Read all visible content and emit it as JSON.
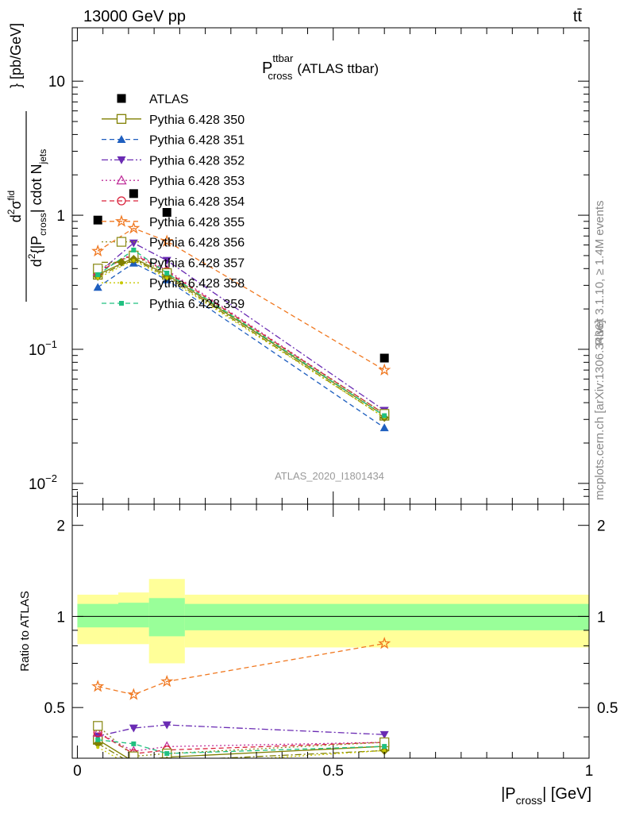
{
  "header": {
    "energy_label": "13000 GeV pp",
    "process_label": "tt̄"
  },
  "side_labels": {
    "rivet": "Rivet 3.1.10, ≥ 1.4M events",
    "mcplots": "mcplots.cern.ch [arXiv:1306.3436]"
  },
  "main_panel": {
    "title_main": "P",
    "title_sup": "ttbar",
    "title_sub": "cross",
    "title_suffix": "(ATLAS ttbar)",
    "ylabel": "d²σ^fid / d²{|P_cross| cdot N_jets} [pb/GeV]",
    "ylabel_parts": {
      "d1": "d",
      "sup2a": "2",
      "sigma": "σ",
      "sup_fid": "fid",
      "d2": "d",
      "sup2b": "2",
      "brace_open": "{|P",
      "sub_cross": "cross",
      "mid": "| cdot N",
      "sub_jets": "jets",
      "unit": "} [pb/GeV]"
    },
    "watermark": "ATLAS_2020_I1801434",
    "y_ticks": [
      {
        "base": "10",
        "exp": "−2"
      },
      {
        "base": "10",
        "exp": "−1"
      },
      {
        "base": "1",
        "exp": ""
      },
      {
        "base": "10",
        "exp": ""
      }
    ]
  },
  "ratio_panel": {
    "ylabel": "Ratio to ATLAS",
    "y_ticks": [
      "0.5",
      "1",
      "2"
    ],
    "x_ticks": [
      "0",
      "0.5",
      "1"
    ],
    "xlabel_main": "|P",
    "xlabel_sub": "cross",
    "xlabel_unit": "| [GeV]"
  },
  "chart_data": {
    "type": "line",
    "title": "P_cross^ttbar (ATLAS ttbar)",
    "xlabel": "|P_cross| [GeV]",
    "ylabel": "d²σ^fid/d²{|P_cross| cdot N_jets} [pb/GeV]",
    "y_scale": "log",
    "xlim": [
      -0.01,
      1.0
    ],
    "ylim": [
      0.007,
      25
    ],
    "ratio_ylim": [
      0.34,
      2.35
    ],
    "grid": false,
    "legend_position": "top-left",
    "x": [
      0.04,
      0.11,
      0.175,
      0.6
    ],
    "bands": {
      "edges": [
        0.0,
        0.08,
        0.14,
        0.21,
        1.0
      ],
      "green_lo": [
        0.92,
        0.92,
        0.86,
        0.9
      ],
      "green_hi": [
        1.1,
        1.11,
        1.15,
        1.1
      ],
      "yellow_lo": [
        0.81,
        0.81,
        0.7,
        0.79
      ],
      "yellow_hi": [
        1.18,
        1.2,
        1.33,
        1.18
      ]
    },
    "series": [
      {
        "name": "ATLAS",
        "color": "#000000",
        "marker": "filled-square",
        "dash": "none",
        "values": [
          0.92,
          1.45,
          1.05,
          0.086
        ]
      },
      {
        "name": "Pythia 6.428 350",
        "color": "#7f7f00",
        "marker": "open-square",
        "dash": "solid",
        "values": [
          0.36,
          0.48,
          0.36,
          0.032
        ]
      },
      {
        "name": "Pythia 6.428 351",
        "color": "#1f5fbf",
        "marker": "filled-triangle-up",
        "dash": "dashed",
        "values": [
          0.29,
          0.44,
          0.33,
          0.026
        ]
      },
      {
        "name": "Pythia 6.428 352",
        "color": "#6a2bb3",
        "marker": "filled-triangle-down",
        "dash": "dash-dot",
        "values": [
          0.37,
          0.62,
          0.46,
          0.035
        ]
      },
      {
        "name": "Pythia 6.428 353",
        "color": "#c0309b",
        "marker": "open-triangle-up",
        "dash": "dotted",
        "values": [
          0.38,
          0.52,
          0.39,
          0.033
        ]
      },
      {
        "name": "Pythia 6.428 354",
        "color": "#d9203a",
        "marker": "open-circle",
        "dash": "dashed",
        "values": [
          0.38,
          0.51,
          0.38,
          0.033
        ]
      },
      {
        "name": "Pythia 6.428 355",
        "color": "#f07820",
        "marker": "open-star",
        "dash": "dashed",
        "values": [
          0.54,
          0.8,
          0.64,
          0.07
        ]
      },
      {
        "name": "Pythia 6.428 356",
        "color": "#8f8f1f",
        "marker": "open-square",
        "dash": "dotted",
        "values": [
          0.4,
          0.5,
          0.37,
          0.033
        ]
      },
      {
        "name": "Pythia 6.428 357",
        "color": "#7f7f00",
        "marker": "filled-diamond",
        "dash": "dash-dot",
        "values": [
          0.35,
          0.47,
          0.35,
          0.031
        ]
      },
      {
        "name": "Pythia 6.428 358",
        "color": "#c8c800",
        "marker": "small-dot",
        "dash": "dotted",
        "values": [
          0.34,
          0.46,
          0.34,
          0.031
        ]
      },
      {
        "name": "Pythia 6.428 359",
        "color": "#20c080",
        "marker": "filled-square-small",
        "dash": "dashed",
        "values": [
          0.36,
          0.55,
          0.37,
          0.032
        ]
      }
    ]
  }
}
